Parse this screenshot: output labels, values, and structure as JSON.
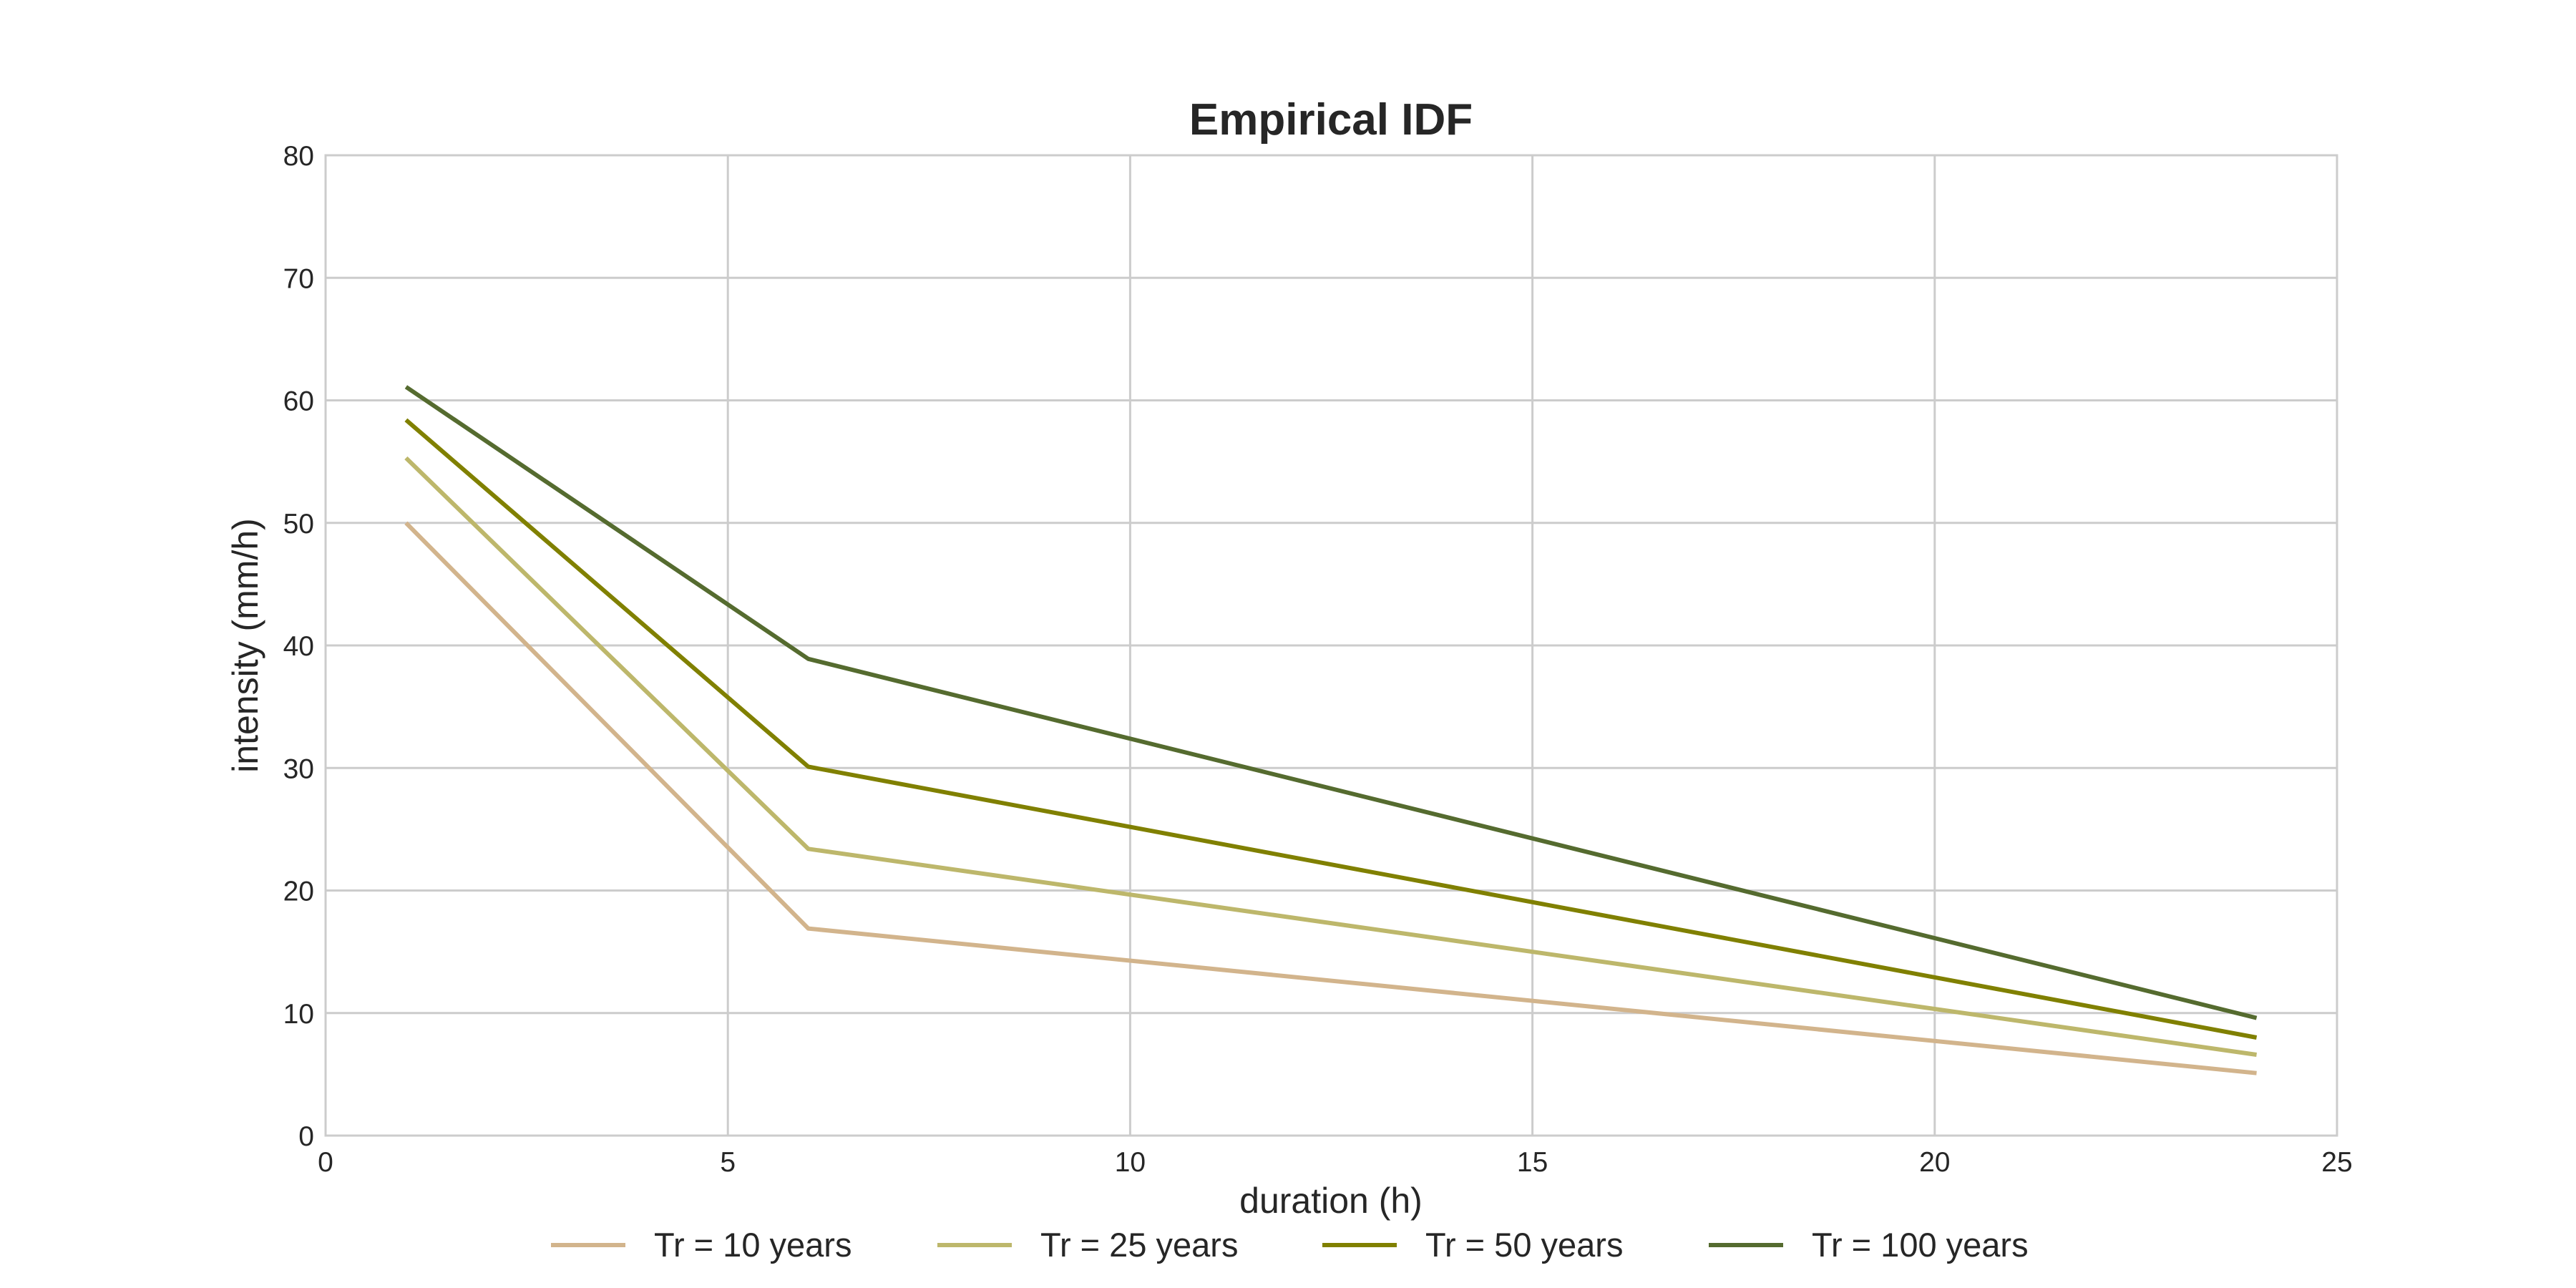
{
  "chart_data": {
    "type": "line",
    "title": "Empirical IDF",
    "xlabel": "duration (h)",
    "ylabel": "intensity (mm/h)",
    "xlim": [
      0,
      25
    ],
    "ylim": [
      0,
      80
    ],
    "xticks": [
      "0",
      "5",
      "10",
      "15",
      "20",
      "25"
    ],
    "yticks": [
      "0",
      "10",
      "20",
      "30",
      "40",
      "50",
      "60",
      "70",
      "80"
    ],
    "grid": true,
    "legend_position": "bottom",
    "x": [
      1,
      6,
      24
    ],
    "series": [
      {
        "name": "Tr = 10 years",
        "color": "#d2b48c",
        "values": [
          50.0,
          16.9,
          5.1
        ]
      },
      {
        "name": "Tr = 25 years",
        "color": "#bdb76b",
        "values": [
          55.3,
          23.4,
          6.6
        ]
      },
      {
        "name": "Tr = 50 years",
        "color": "#808000",
        "values": [
          58.4,
          30.1,
          8.0
        ]
      },
      {
        "name": "Tr = 100 years",
        "color": "#556b2f",
        "values": [
          61.1,
          38.9,
          9.6
        ]
      }
    ]
  }
}
